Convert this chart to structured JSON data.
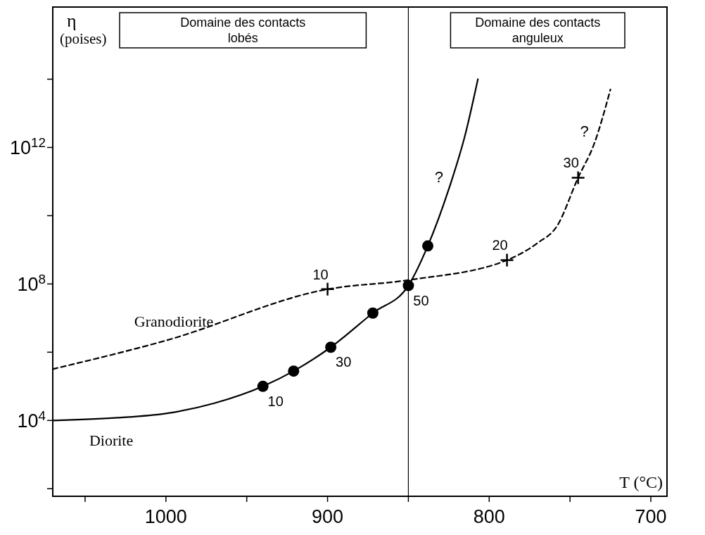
{
  "chart_data": {
    "type": "line",
    "xlabel": "T (°C)",
    "ylabel": "η\n(poises)",
    "log": "y",
    "xlim": [
      1070,
      690
    ],
    "ylim": [
      60,
      1.3e+16
    ],
    "xticks": [
      {
        "value": 1050,
        "label": null
      },
      1000,
      {
        "value": 950,
        "label": null
      },
      900,
      {
        "value": 850,
        "label": null
      },
      800,
      {
        "value": 750,
        "label": null
      },
      700
    ],
    "yticks": [
      {
        "value": 100.0,
        "label": null
      },
      {
        "value": 10000.0,
        "label": "10$^{4}$"
      },
      {
        "value": 1000000.0,
        "label": null
      },
      {
        "value": 100000000.0,
        "label": "10$^{8}$"
      },
      {
        "value": 10000000000.0,
        "label": null
      },
      {
        "value": 1000000000000.0,
        "label": "10$^{12}$"
      },
      {
        "value": 100000000000000.0,
        "label": null
      }
    ],
    "grid": false,
    "series": [
      {
        "name": "Diorite",
        "line_style": "solid",
        "marker": "none",
        "color": "#000000",
        "x": [
          1070,
          1030,
          1000,
          970,
          940,
          921,
          898,
          872,
          850,
          838,
          825,
          815,
          807
        ],
        "values": [
          10000.0,
          12000.0,
          16000.0,
          32000.0,
          100000.0,
          280000.0,
          1400000.0,
          14000000.0,
          90000000.0,
          1300000000.0,
          60000000000.0,
          2200000000000.0,
          100000000000000.0
        ]
      },
      {
        "type": "scatter",
        "marker": "circle",
        "color": "#000000",
        "x": [
          940,
          921,
          898,
          872,
          850,
          838
        ],
        "values": [
          100000.0,
          280000.0,
          1400000.0,
          14000000.0,
          90000000.0,
          1300000000.0
        ]
      },
      {
        "name": "Granodiorite",
        "line_style": "dashed",
        "marker": "none",
        "color": "#000000",
        "x": [
          1070,
          1000,
          900,
          850,
          789,
          770,
          758,
          745,
          735,
          725
        ],
        "values": [
          320000.0,
          2200000.0,
          70000000.0,
          130000000.0,
          500000000.0,
          1600000000.0,
          5000000000.0,
          130000000000.0,
          1300000000000.0,
          50000000000000.0
        ]
      },
      {
        "type": "scatter",
        "marker": "cross",
        "color": "#000000",
        "x": [
          900,
          789,
          745
        ],
        "values": [
          70000000.0,
          500000000.0,
          130000000000.0
        ]
      }
    ],
    "ref_lines": [
      {
        "axis": "x",
        "value": 850,
        "color": "#000000"
      }
    ],
    "annotations": [
      "Domaine des contacts\nlobés",
      "Domaine des contacts\nanguleux",
      {
        "text": "?",
        "x": 825,
        "y": 60000000000.0
      },
      {
        "text": "?",
        "x": 735,
        "y": 1300000000000.0
      },
      {
        "text": "10",
        "x": 940,
        "y": 100000.0
      },
      {
        "text": "30",
        "x": 898,
        "y": 1400000.0
      },
      {
        "text": "50",
        "x": 850,
        "y": 90000000.0
      },
      {
        "text": "10",
        "x": 900,
        "y": 70000000.0
      },
      {
        "text": "20",
        "x": 789,
        "y": 500000000.0
      },
      {
        "text": "30",
        "x": 745,
        "y": 130000000000.0
      }
    ]
  }
}
